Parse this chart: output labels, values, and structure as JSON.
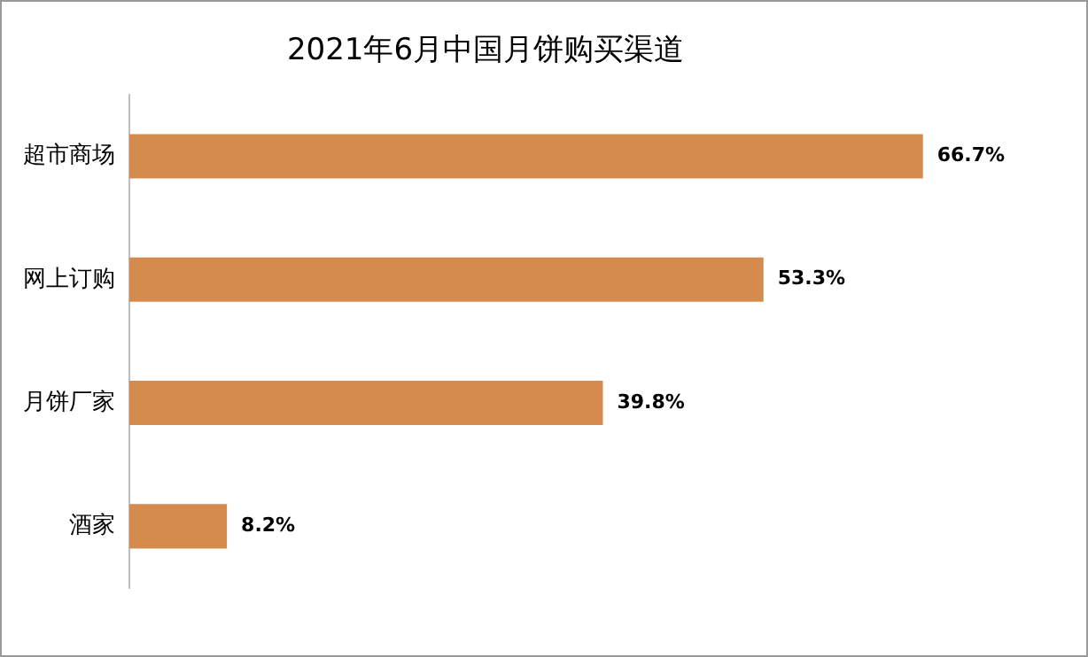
{
  "chart_data": {
    "type": "bar",
    "orientation": "horizontal",
    "title": "2021年6月中国月饼购买渠道",
    "categories": [
      "超市商场",
      "网上订购",
      "月饼厂家",
      "酒家"
    ],
    "values": [
      66.7,
      53.3,
      39.8,
      8.2
    ],
    "value_labels": [
      "66.7%",
      "53.3%",
      "39.8%",
      "8.2%"
    ],
    "color": "#d68b4e",
    "legend": false
  }
}
